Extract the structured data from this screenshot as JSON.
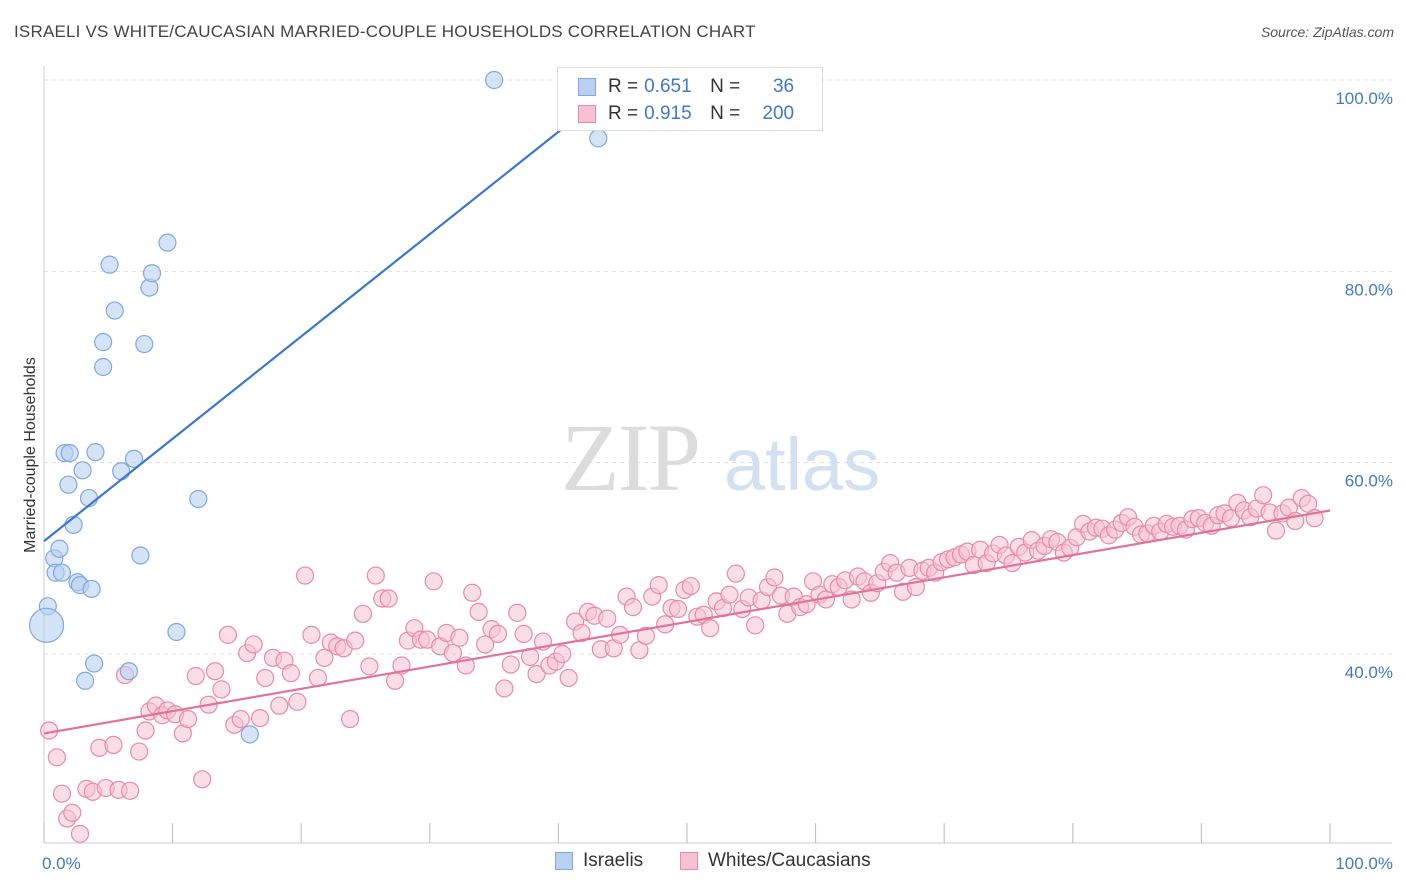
{
  "title": "ISRAELI VS WHITE/CAUCASIAN MARRIED-COUPLE HOUSEHOLDS CORRELATION CHART",
  "source": "Source: ZipAtlas.com",
  "watermark": {
    "zip": "ZIP",
    "atlas": "atlas"
  },
  "legend": {
    "r_label": "R =",
    "n_label": "N =",
    "rows": [
      {
        "r": "0.651",
        "n": "36",
        "color": "#7fa8e0",
        "fill": "#b9d0f2"
      },
      {
        "r": "0.915",
        "n": "200",
        "color": "#e98aa8",
        "fill": "#f6c2d2"
      }
    ]
  },
  "bottom_legend": {
    "items": [
      {
        "label": "Israelis",
        "color": "#7fa8e0",
        "fill": "#b9d0f2"
      },
      {
        "label": "Whites/Caucasians",
        "color": "#e98aa8",
        "fill": "#f6c2d2"
      }
    ]
  },
  "chart_data": {
    "type": "scatter",
    "title": "ISRAELI VS WHITE/CAUCASIAN MARRIED-COUPLE HOUSEHOLDS CORRELATION CHART",
    "xlabel": "",
    "ylabel": "Married-couple Households",
    "xlim": [
      0,
      100
    ],
    "ylim": [
      19,
      101
    ],
    "x_tick_labels": [
      "0.0%",
      "100.0%"
    ],
    "y_ticks": [
      40,
      60,
      80,
      100
    ],
    "y_tick_labels": [
      "40.0%",
      "60.0%",
      "80.0%",
      "100.0%"
    ],
    "grid": true,
    "series": [
      {
        "name": "Israelis",
        "color": "#7fa8e0",
        "fill": "#b9d0f2",
        "line_color": "#3a78d0",
        "trend": {
          "x0": 0,
          "y0": 51.8,
          "x1": 46,
          "y1": 101
        },
        "points": [
          [
            0.3,
            45.0
          ],
          [
            0.2,
            43.0
          ],
          [
            0.8,
            50.0
          ],
          [
            1.2,
            51.0
          ],
          [
            0.9,
            48.5
          ],
          [
            1.4,
            48.5
          ],
          [
            1.6,
            61.0
          ],
          [
            2.0,
            61.0
          ],
          [
            1.9,
            57.7
          ],
          [
            2.3,
            53.5
          ],
          [
            2.6,
            47.5
          ],
          [
            2.8,
            47.2
          ],
          [
            3.0,
            59.2
          ],
          [
            3.2,
            37.2
          ],
          [
            3.5,
            56.3
          ],
          [
            3.7,
            46.8
          ],
          [
            4.0,
            61.1
          ],
          [
            3.9,
            39.0
          ],
          [
            4.6,
            70.0
          ],
          [
            4.6,
            72.6
          ],
          [
            5.1,
            80.7
          ],
          [
            5.5,
            75.9
          ],
          [
            6.0,
            59.1
          ],
          [
            6.6,
            38.2
          ],
          [
            7.0,
            60.4
          ],
          [
            7.5,
            50.3
          ],
          [
            7.8,
            72.4
          ],
          [
            8.2,
            78.3
          ],
          [
            8.4,
            79.8
          ],
          [
            9.6,
            83.0
          ],
          [
            10.3,
            42.3
          ],
          [
            12.0,
            56.2
          ],
          [
            16.0,
            31.6
          ],
          [
            35.0,
            100.0
          ],
          [
            43.1,
            93.9
          ],
          [
            45.0,
            100.0
          ]
        ],
        "sizes": [
          1,
          2,
          1,
          1,
          1,
          1,
          1,
          1,
          1,
          1,
          1,
          1,
          1,
          1,
          1,
          1,
          1,
          1,
          1,
          1,
          1,
          1,
          1,
          1,
          1,
          1,
          1,
          1,
          1,
          1,
          1,
          1,
          1,
          1,
          1,
          1
        ]
      },
      {
        "name": "Whites/Caucasians",
        "color": "#e98aa8",
        "fill": "#f6c2d2",
        "line_color": "#e0739a",
        "trend": {
          "x0": 0,
          "y0": 31.7,
          "x1": 100,
          "y1": 55.0
        },
        "points": [
          [
            0.4,
            32.0
          ],
          [
            1.0,
            29.2
          ],
          [
            1.4,
            25.4
          ],
          [
            1.8,
            22.8
          ],
          [
            2.2,
            23.4
          ],
          [
            2.8,
            21.2
          ],
          [
            3.3,
            25.9
          ],
          [
            3.8,
            25.6
          ],
          [
            4.3,
            30.2
          ],
          [
            4.8,
            26.0
          ],
          [
            5.4,
            30.5
          ],
          [
            5.8,
            25.8
          ],
          [
            6.3,
            37.8
          ],
          [
            6.7,
            25.7
          ],
          [
            7.4,
            29.8
          ],
          [
            7.9,
            32.0
          ],
          [
            8.2,
            34.0
          ],
          [
            8.7,
            34.6
          ],
          [
            9.2,
            33.6
          ],
          [
            9.6,
            34.1
          ],
          [
            10.2,
            33.7
          ],
          [
            10.8,
            31.7
          ],
          [
            11.2,
            33.2
          ],
          [
            11.8,
            37.7
          ],
          [
            12.3,
            26.9
          ],
          [
            12.8,
            34.7
          ],
          [
            13.3,
            38.2
          ],
          [
            13.8,
            36.3
          ],
          [
            14.3,
            42.0
          ],
          [
            14.8,
            32.6
          ],
          [
            15.3,
            33.2
          ],
          [
            15.8,
            40.1
          ],
          [
            16.3,
            41.0
          ],
          [
            16.8,
            33.3
          ],
          [
            17.2,
            37.5
          ],
          [
            17.8,
            39.6
          ],
          [
            18.3,
            34.6
          ],
          [
            18.7,
            39.3
          ],
          [
            19.2,
            38.0
          ],
          [
            19.7,
            35.0
          ],
          [
            20.3,
            48.2
          ],
          [
            20.8,
            42.0
          ],
          [
            21.3,
            37.5
          ],
          [
            21.8,
            39.6
          ],
          [
            22.3,
            41.2
          ],
          [
            22.8,
            40.8
          ],
          [
            23.3,
            40.6
          ],
          [
            23.8,
            33.2
          ],
          [
            24.2,
            41.4
          ],
          [
            24.8,
            44.2
          ],
          [
            25.3,
            38.7
          ],
          [
            25.8,
            48.2
          ],
          [
            26.3,
            45.8
          ],
          [
            26.8,
            45.8
          ],
          [
            27.3,
            37.2
          ],
          [
            27.8,
            38.8
          ],
          [
            28.3,
            41.4
          ],
          [
            28.8,
            42.7
          ],
          [
            29.3,
            41.5
          ],
          [
            29.8,
            41.5
          ],
          [
            30.3,
            47.6
          ],
          [
            30.8,
            40.8
          ],
          [
            31.3,
            42.2
          ],
          [
            31.8,
            40.1
          ],
          [
            32.3,
            41.7
          ],
          [
            32.8,
            38.8
          ],
          [
            33.3,
            46.4
          ],
          [
            33.8,
            44.4
          ],
          [
            34.3,
            41.0
          ],
          [
            34.8,
            42.6
          ],
          [
            35.3,
            42.1
          ],
          [
            35.8,
            36.4
          ],
          [
            36.3,
            38.9
          ],
          [
            36.8,
            44.3
          ],
          [
            37.3,
            42.1
          ],
          [
            37.8,
            39.7
          ],
          [
            38.3,
            37.9
          ],
          [
            38.8,
            41.3
          ],
          [
            39.3,
            38.8
          ],
          [
            39.8,
            39.2
          ],
          [
            40.3,
            40.0
          ],
          [
            40.8,
            37.5
          ],
          [
            41.3,
            43.4
          ],
          [
            41.8,
            42.2
          ],
          [
            42.3,
            44.4
          ],
          [
            42.8,
            44.0
          ],
          [
            43.3,
            40.5
          ],
          [
            43.8,
            43.7
          ],
          [
            44.3,
            40.6
          ],
          [
            44.8,
            42.0
          ],
          [
            45.3,
            46.0
          ],
          [
            45.8,
            44.9
          ],
          [
            46.3,
            40.4
          ],
          [
            46.8,
            41.9
          ],
          [
            47.3,
            46.0
          ],
          [
            47.8,
            47.2
          ],
          [
            48.3,
            43.1
          ],
          [
            48.8,
            44.8
          ],
          [
            49.3,
            44.7
          ],
          [
            49.8,
            46.7
          ],
          [
            50.3,
            47.1
          ],
          [
            50.8,
            43.9
          ],
          [
            51.3,
            44.1
          ],
          [
            51.8,
            42.7
          ],
          [
            52.3,
            45.5
          ],
          [
            52.8,
            44.8
          ],
          [
            53.3,
            46.2
          ],
          [
            53.8,
            48.4
          ],
          [
            54.3,
            44.7
          ],
          [
            54.8,
            45.9
          ],
          [
            55.3,
            43.0
          ],
          [
            55.8,
            45.6
          ],
          [
            56.3,
            47.0
          ],
          [
            56.8,
            48.0
          ],
          [
            57.3,
            46.1
          ],
          [
            57.8,
            44.2
          ],
          [
            58.3,
            46.0
          ],
          [
            58.8,
            44.9
          ],
          [
            59.3,
            45.2
          ],
          [
            59.8,
            47.6
          ],
          [
            60.3,
            46.2
          ],
          [
            60.8,
            45.7
          ],
          [
            61.3,
            47.3
          ],
          [
            61.8,
            47.0
          ],
          [
            62.3,
            47.7
          ],
          [
            62.8,
            45.7
          ],
          [
            63.3,
            48.1
          ],
          [
            63.8,
            47.6
          ],
          [
            64.3,
            46.4
          ],
          [
            64.8,
            47.4
          ],
          [
            65.3,
            48.6
          ],
          [
            65.8,
            49.5
          ],
          [
            66.3,
            48.5
          ],
          [
            66.8,
            46.5
          ],
          [
            67.3,
            49.0
          ],
          [
            67.8,
            47.0
          ],
          [
            68.3,
            48.7
          ],
          [
            68.8,
            49.0
          ],
          [
            69.3,
            48.5
          ],
          [
            69.8,
            49.6
          ],
          [
            70.3,
            49.9
          ],
          [
            70.8,
            50.1
          ],
          [
            71.3,
            50.4
          ],
          [
            71.8,
            50.7
          ],
          [
            72.3,
            49.3
          ],
          [
            72.8,
            50.9
          ],
          [
            73.3,
            49.5
          ],
          [
            73.8,
            50.5
          ],
          [
            74.3,
            51.4
          ],
          [
            74.8,
            50.3
          ],
          [
            75.3,
            49.5
          ],
          [
            75.8,
            51.2
          ],
          [
            76.3,
            50.6
          ],
          [
            76.8,
            51.9
          ],
          [
            77.3,
            50.8
          ],
          [
            77.8,
            51.3
          ],
          [
            78.3,
            52.0
          ],
          [
            78.8,
            51.7
          ],
          [
            79.3,
            50.6
          ],
          [
            79.8,
            51.1
          ],
          [
            80.3,
            52.2
          ],
          [
            80.8,
            53.6
          ],
          [
            81.3,
            52.8
          ],
          [
            81.8,
            53.2
          ],
          [
            82.3,
            53.1
          ],
          [
            82.8,
            52.4
          ],
          [
            83.3,
            53.0
          ],
          [
            83.8,
            53.7
          ],
          [
            84.3,
            54.3
          ],
          [
            84.8,
            53.3
          ],
          [
            85.3,
            52.5
          ],
          [
            85.8,
            52.6
          ],
          [
            86.3,
            53.4
          ],
          [
            86.8,
            52.8
          ],
          [
            87.3,
            53.6
          ],
          [
            87.8,
            53.3
          ],
          [
            88.3,
            53.4
          ],
          [
            88.8,
            53.0
          ],
          [
            89.3,
            54.1
          ],
          [
            89.8,
            54.2
          ],
          [
            90.3,
            53.7
          ],
          [
            90.8,
            53.4
          ],
          [
            91.3,
            54.5
          ],
          [
            91.8,
            54.7
          ],
          [
            92.3,
            54.2
          ],
          [
            92.8,
            55.8
          ],
          [
            93.3,
            55.0
          ],
          [
            93.8,
            54.3
          ],
          [
            94.3,
            55.2
          ],
          [
            94.8,
            56.6
          ],
          [
            95.3,
            54.8
          ],
          [
            95.8,
            52.9
          ],
          [
            96.3,
            54.7
          ],
          [
            96.8,
            55.3
          ],
          [
            97.3,
            53.9
          ],
          [
            97.8,
            56.3
          ],
          [
            98.3,
            55.7
          ],
          [
            98.8,
            54.2
          ]
        ]
      }
    ]
  }
}
